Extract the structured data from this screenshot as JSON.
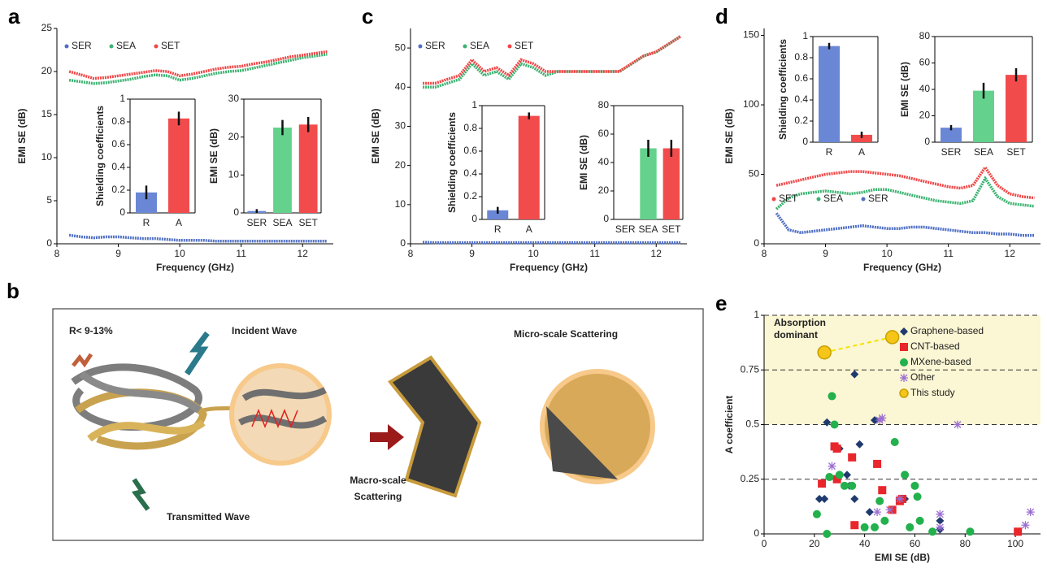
{
  "chart_data": [
    {
      "type": "line",
      "panel_label": "a",
      "xlabel": "Frequency (GHz)",
      "ylabel": "EMI SE (dB)",
      "xlim": [
        8,
        12.5
      ],
      "xticks": [
        8,
        9,
        10,
        11,
        12
      ],
      "ylim": [
        0,
        25
      ],
      "yticks": [
        0,
        5,
        10,
        15,
        20,
        25
      ],
      "legend": "upper left",
      "x": [
        8.2,
        8.4,
        8.6,
        8.8,
        9,
        9.2,
        9.4,
        9.6,
        9.8,
        10,
        10.2,
        10.4,
        10.6,
        10.8,
        11,
        11.2,
        11.4,
        11.6,
        11.8,
        12,
        12.2,
        12.4
      ],
      "series": [
        {
          "name": "SER",
          "color": "#4f6fc4",
          "values": [
            1.0,
            0.8,
            0.7,
            0.8,
            0.8,
            0.7,
            0.6,
            0.6,
            0.5,
            0.4,
            0.4,
            0.4,
            0.3,
            0.3,
            0.3,
            0.3,
            0.3,
            0.3,
            0.3,
            0.3,
            0.3,
            0.3
          ]
        },
        {
          "name": "SEA",
          "color": "#3cb371",
          "values": [
            19,
            18.8,
            18.6,
            18.7,
            18.9,
            19.1,
            19.4,
            19.6,
            19.5,
            19,
            19.2,
            19.5,
            19.8,
            20,
            20.1,
            20.4,
            20.7,
            21,
            21.3,
            21.6,
            21.8,
            22
          ]
        },
        {
          "name": "SET",
          "color": "#f04646",
          "values": [
            20,
            19.6,
            19.2,
            19.3,
            19.5,
            19.7,
            19.9,
            20.1,
            20,
            19.5,
            19.7,
            20,
            20.3,
            20.5,
            20.6,
            20.9,
            21.1,
            21.4,
            21.7,
            21.9,
            22.1,
            22.3
          ]
        }
      ]
    },
    {
      "type": "bar",
      "ylabel": "Shielding coefficients",
      "categories": [
        "R",
        "A"
      ],
      "values": [
        0.18,
        0.83
      ],
      "errors": [
        0.06,
        0.06
      ],
      "colors": [
        "#6a87d6",
        "#f24b4b"
      ],
      "ylim": [
        0,
        1
      ],
      "yticks": [
        0,
        0.2,
        0.4,
        0.6,
        0.8,
        1
      ]
    },
    {
      "type": "bar",
      "ylabel": "EMI SE (dB)",
      "categories": [
        "SER",
        "SEA",
        "SET"
      ],
      "values": [
        0.5,
        22.5,
        23.3
      ],
      "errors": [
        0.5,
        2,
        2
      ],
      "colors": [
        "#6a87d6",
        "#64d28c",
        "#f24b4b"
      ],
      "ylim": [
        0,
        30
      ],
      "yticks": [
        0,
        10,
        20,
        30
      ]
    },
    {
      "type": "line",
      "panel_label": "c",
      "xlabel": "Frequency (GHz)",
      "ylabel": "EMI SE (dB)",
      "xlim": [
        8,
        12.5
      ],
      "xticks": [
        8,
        9,
        10,
        11,
        12
      ],
      "ylim": [
        0,
        55
      ],
      "yticks": [
        0,
        10,
        20,
        30,
        40,
        50
      ],
      "legend": "upper left",
      "x": [
        8.2,
        8.4,
        8.6,
        8.8,
        9,
        9.2,
        9.4,
        9.6,
        9.8,
        10,
        10.2,
        10.4,
        10.6,
        10.8,
        11,
        11.2,
        11.4,
        11.6,
        11.8,
        12,
        12.2,
        12.4
      ],
      "series": [
        {
          "name": "SER",
          "color": "#4f6fc4",
          "values": [
            0.4,
            0.3,
            0.3,
            0.3,
            0.3,
            0.3,
            0.3,
            0.3,
            0.3,
            0.3,
            0.3,
            0.3,
            0.3,
            0.3,
            0.3,
            0.3,
            0.3,
            0.3,
            0.3,
            0.3,
            0.3,
            0.3
          ]
        },
        {
          "name": "SEA",
          "color": "#3cb371",
          "values": [
            40,
            40,
            41,
            42,
            46,
            43,
            44,
            42,
            46,
            45,
            43,
            44,
            44,
            44,
            44,
            44,
            44,
            46,
            48,
            49,
            51,
            53
          ]
        },
        {
          "name": "SET",
          "color": "#f04646",
          "values": [
            41,
            41,
            42,
            43,
            47,
            44,
            45,
            43,
            47,
            46,
            44,
            44,
            44,
            44,
            44,
            44,
            44,
            46,
            48,
            49,
            51,
            53
          ]
        }
      ]
    },
    {
      "type": "bar",
      "ylabel": "Shielding coefficients",
      "categories": [
        "R",
        "A"
      ],
      "values": [
        0.08,
        0.91
      ],
      "errors": [
        0.03,
        0.03
      ],
      "colors": [
        "#6a87d6",
        "#f24b4b"
      ],
      "ylim": [
        0,
        1
      ],
      "yticks": [
        0,
        0.2,
        0.4,
        0.6,
        0.8,
        1
      ]
    },
    {
      "type": "bar",
      "ylabel": "EMI SE (dB)",
      "categories": [
        "SER",
        "SEA",
        "SET"
      ],
      "values": [
        0,
        50,
        50
      ],
      "errors": [
        0,
        6,
        6
      ],
      "colors": [
        "#6a87d6",
        "#64d28c",
        "#f24b4b"
      ],
      "ylim": [
        0,
        80
      ],
      "yticks": [
        0,
        20,
        40,
        60,
        80
      ]
    },
    {
      "type": "line",
      "panel_label": "d",
      "xlabel": "Frequency (GHz)",
      "ylabel": "EMI SE (dB)",
      "xlim": [
        8,
        12.5
      ],
      "xticks": [
        8,
        9,
        10,
        11,
        12
      ],
      "ylim": [
        0,
        155
      ],
      "yticks": [
        0,
        50,
        100,
        150
      ],
      "legend": "lower left",
      "x": [
        8.2,
        8.4,
        8.6,
        8.8,
        9,
        9.2,
        9.4,
        9.6,
        9.8,
        10,
        10.2,
        10.4,
        10.6,
        10.8,
        11,
        11.2,
        11.4,
        11.6,
        11.8,
        12,
        12.2,
        12.4
      ],
      "series": [
        {
          "name": "SET",
          "color": "#f04646",
          "values": [
            42,
            44,
            46,
            48,
            50,
            51,
            52,
            52,
            51,
            50,
            49,
            47,
            45,
            43,
            41,
            40,
            42,
            55,
            42,
            36,
            34,
            33
          ]
        },
        {
          "name": "SEA",
          "color": "#3cb371",
          "values": [
            25,
            33,
            36,
            37,
            38,
            37,
            36,
            37,
            39,
            39,
            37,
            35,
            33,
            31,
            30,
            29,
            31,
            47,
            34,
            29,
            28,
            27
          ]
        },
        {
          "name": "SER",
          "color": "#4f6fc4",
          "values": [
            22,
            10,
            8,
            9,
            10,
            11,
            12,
            13,
            12,
            11,
            11,
            12,
            12,
            11,
            10,
            9,
            8,
            8,
            7,
            7,
            6,
            6
          ]
        }
      ]
    },
    {
      "type": "bar",
      "ylabel": "Shielding coefficients",
      "categories": [
        "R",
        "A"
      ],
      "values": [
        0.91,
        0.07
      ],
      "errors": [
        0.03,
        0.03
      ],
      "colors": [
        "#6a87d6",
        "#f24b4b"
      ],
      "ylim": [
        0,
        1
      ],
      "yticks": [
        0,
        0.2,
        0.4,
        0.6,
        0.8,
        1
      ]
    },
    {
      "type": "bar",
      "ylabel": "EMI SE (dB)",
      "categories": [
        "SER",
        "SEA",
        "SET"
      ],
      "values": [
        11,
        39,
        51
      ],
      "errors": [
        2,
        6,
        5
      ],
      "colors": [
        "#6a87d6",
        "#64d28c",
        "#f24b4b"
      ],
      "ylim": [
        0,
        80
      ],
      "yticks": [
        0,
        20,
        40,
        60,
        80
      ]
    },
    {
      "type": "scatter",
      "panel_label": "e",
      "xlabel": "EMI SE (dB)",
      "ylabel": "A coefficient",
      "xlim": [
        0,
        110
      ],
      "xticks": [
        0,
        20,
        40,
        60,
        80,
        100
      ],
      "ylim": [
        0,
        1
      ],
      "yticks": [
        0,
        0.25,
        0.5,
        0.75,
        1
      ],
      "grid": "dashed",
      "shaded_ylim": [
        0.5,
        1
      ],
      "shade_color": "#fbf6d3",
      "annotation": [
        "Absorption",
        "dominant"
      ],
      "legend": "upper right",
      "series": [
        {
          "name": "Graphene-based",
          "color": "#1f3a6e",
          "marker": "diamond",
          "x": [
            22,
            24,
            25,
            30,
            34,
            36,
            36,
            38,
            42,
            44,
            56,
            70,
            70,
            33
          ],
          "values": [
            0.16,
            0.16,
            0.51,
            0.39,
            0.22,
            0.73,
            0.16,
            0.41,
            0.1,
            0.52,
            0.16,
            0.06,
            0.02,
            0.27
          ]
        },
        {
          "name": "CNT-based",
          "color": "#e8262b",
          "marker": "square",
          "x": [
            23,
            28,
            29,
            35,
            36,
            45,
            47,
            51,
            55,
            54,
            101,
            29
          ],
          "values": [
            0.23,
            0.4,
            0.25,
            0.35,
            0.04,
            0.32,
            0.2,
            0.11,
            0.16,
            0.15,
            0.01,
            0.39
          ]
        },
        {
          "name": "MXene-based",
          "color": "#22b14c",
          "marker": "circle",
          "x": [
            21,
            25,
            26,
            27,
            28,
            30,
            32,
            35,
            40,
            44,
            48,
            52,
            56,
            60,
            61,
            62,
            58,
            67,
            82,
            46
          ],
          "values": [
            0.09,
            0,
            0.26,
            0.63,
            0.5,
            0.27,
            0.22,
            0.22,
            0.03,
            0.03,
            0.06,
            0.42,
            0.27,
            0.22,
            0.17,
            0.06,
            0.03,
            0.01,
            0.01,
            0.15
          ]
        },
        {
          "name": "Other",
          "color": "#9b6fd1",
          "marker": "star",
          "x": [
            27,
            45,
            47,
            50,
            54,
            70,
            70,
            77,
            104,
            106,
            46
          ],
          "values": [
            0.31,
            0.1,
            0.53,
            0.11,
            0.16,
            0.09,
            0.03,
            0.5,
            0.04,
            0.1,
            0.52
          ]
        },
        {
          "name": "This study",
          "color": "#f5c518",
          "marker": "target",
          "x": [
            24,
            51
          ],
          "values": [
            0.83,
            0.9
          ]
        }
      ]
    }
  ],
  "illustration": {
    "panel_label": "b",
    "reflection": "R< 9-13%",
    "incident": "Incident Wave",
    "transmitted": "Transmitted Wave",
    "micro": "Micro-scale Scattering",
    "macro": [
      "Macro-scale",
      "Scattering"
    ]
  }
}
